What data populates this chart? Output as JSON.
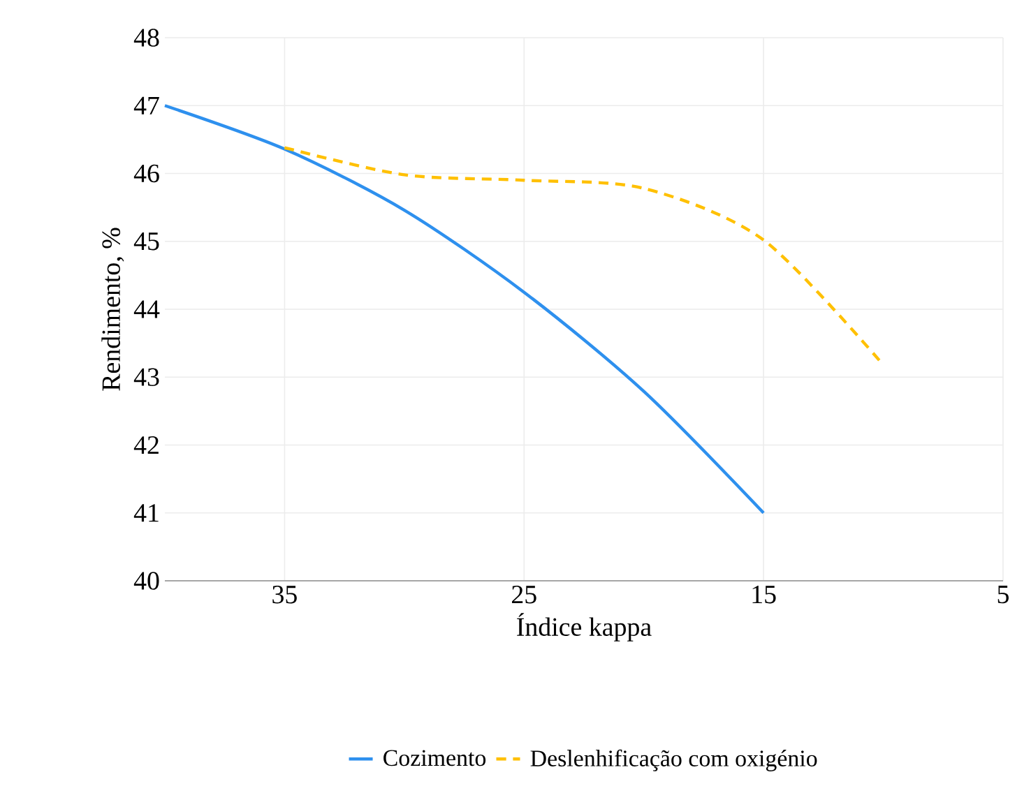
{
  "chart_data": {
    "type": "line",
    "xlabel": "Índice kappa",
    "ylabel": "Rendimento, %",
    "series": [
      {
        "name": "Cozimento",
        "color": "#2e90ee",
        "line_style": "solid",
        "x": [
          40,
          35,
          30,
          25,
          20,
          15
        ],
        "values": [
          47.0,
          46.36,
          45.46,
          44.25,
          42.79,
          41.0
        ]
      },
      {
        "name": "Deslenhificação com oxigénio",
        "color": "#ffc000",
        "line_style": "dashed",
        "x": [
          35,
          30,
          25,
          20,
          15,
          10
        ],
        "values": [
          46.38,
          45.98,
          45.9,
          45.78,
          45.02,
          43.18
        ]
      }
    ],
    "xlim": [
      40,
      5
    ],
    "xticks": [
      35,
      25,
      15,
      5
    ],
    "ylim": [
      40,
      48
    ],
    "yticks": [
      40,
      41,
      42,
      43,
      44,
      45,
      46,
      47,
      48
    ],
    "grid": true,
    "legend": "bottom",
    "marker": "none"
  }
}
